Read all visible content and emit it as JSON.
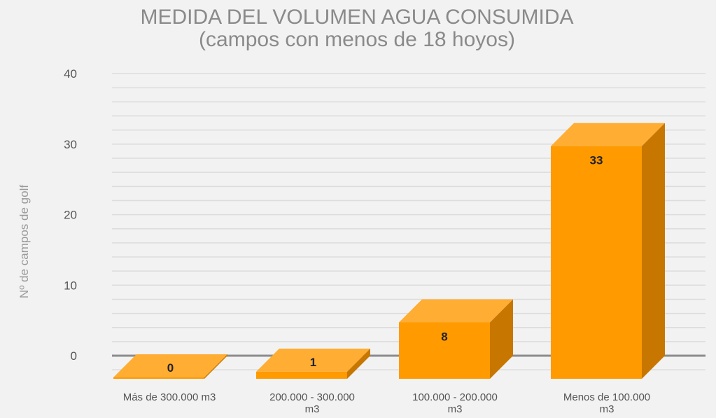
{
  "chart_data": {
    "type": "bar",
    "title": "MEDIDA DEL VOLUMEN AGUA CONSUMIDA",
    "subtitle": "(campos con menos de 18 hoyos)",
    "xlabel": "",
    "ylabel": "Nº de campos de golf",
    "ylim": [
      0,
      40
    ],
    "yticks": [
      0,
      10,
      20,
      30,
      40
    ],
    "grid": true,
    "categories": [
      [
        "Más de 300.000 m3"
      ],
      [
        "200.000 - 300.000",
        "m3"
      ],
      [
        "100.000 - 200.000",
        "m3"
      ],
      [
        "Menos de 100.000",
        "m3"
      ]
    ],
    "values": [
      0,
      1,
      8,
      33
    ],
    "data_labels": [
      "0",
      "1",
      "8",
      "33"
    ],
    "colors": {
      "front": "#ff9a00",
      "top": "#ffad33",
      "side": "#c77700"
    }
  }
}
